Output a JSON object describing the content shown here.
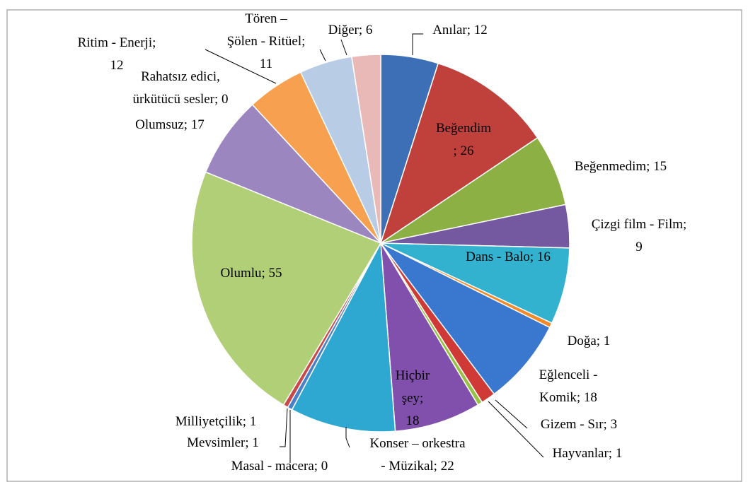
{
  "chart_data": {
    "type": "pie",
    "values": [
      12,
      26,
      15,
      9,
      16,
      1,
      18,
      3,
      1,
      18,
      22,
      0,
      1,
      1,
      55,
      17,
      0,
      12,
      11,
      6
    ],
    "value_labels": [
      "Anılar; 12",
      "Beğendim\n; 26",
      "Beğenmedim; 15",
      "Çizgi film - Film;\n9",
      "Dans  - Balo; 16",
      "Doğa; 1",
      "Eğlenceli -\nKomik; 18",
      "Gizem - Sır; 3",
      "Hayvanlar; 1",
      "Hiçbir\nşey;\n18",
      "Konser – orkestra\n- Müzikal; 22",
      "Masal - macera; 0",
      "Mevsimler; 1",
      "Milliyetçilik; 1",
      "Olumlu; 55",
      "Olumsuz; 17",
      "Rahatsız edici,\nürkütücü sesler; 0",
      "Ritim - Enerji;\n12",
      "Tören –\nŞölen - Ritüel;\n11",
      "Diğer; 6"
    ],
    "colors": [
      "#3d6fb6",
      "#c0403c",
      "#8cb044",
      "#7459a0",
      "#33b2cf",
      "#f08a2c",
      "#3a78cf",
      "#d03a36",
      "#97c047",
      "#8050ac",
      "#2ea8d0",
      "#f59020",
      "#4a80c8",
      "#c84a48",
      "#b0cf76",
      "#9b86c0",
      "#6fc0d8",
      "#f7a050",
      "#b8cce6",
      "#e9b9b8"
    ]
  }
}
